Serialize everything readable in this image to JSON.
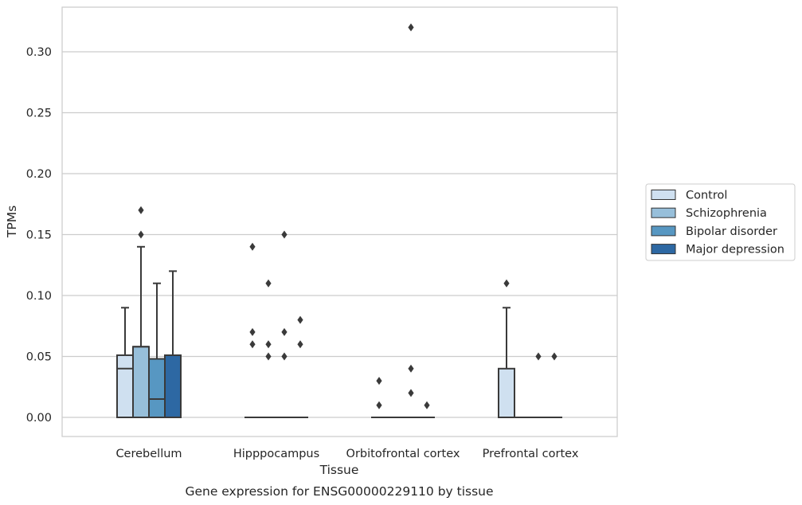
{
  "chart_data": {
    "type": "box",
    "caption": "Gene expression for ENSG00000229110 by tissue",
    "xlabel": "Tissue",
    "ylabel": "TPMs",
    "ylim": [
      -0.016,
      0.337
    ],
    "yticks": [
      0.0,
      0.05,
      0.1,
      0.15,
      0.2,
      0.25,
      0.3
    ],
    "ytick_labels": [
      "0.00",
      "0.05",
      "0.10",
      "0.15",
      "0.20",
      "0.25",
      "0.30"
    ],
    "grid": "horizontal",
    "legend_position": "right",
    "categories": [
      "Cerebellum",
      "Hipppocampus",
      "Orbitofrontal cortex",
      "Prefrontal cortex"
    ],
    "series": [
      {
        "name": "Control",
        "color": "#cfe0f0",
        "boxes": [
          {
            "q1": 0,
            "median": 0.04,
            "q3": 0.051,
            "whisker_low": 0,
            "whisker_high": 0.09,
            "outliers": []
          },
          {
            "q1": 0,
            "median": 0,
            "q3": 0,
            "whisker_low": 0,
            "whisker_high": 0,
            "outliers": [
              0.14,
              0.07,
              0.06
            ]
          },
          {
            "q1": 0,
            "median": 0,
            "q3": 0,
            "whisker_low": 0,
            "whisker_high": 0,
            "outliers": [
              0.03,
              0.01
            ]
          },
          {
            "q1": 0,
            "median": 0,
            "q3": 0.04,
            "whisker_low": 0,
            "whisker_high": 0.09,
            "outliers": [
              0.11
            ]
          }
        ]
      },
      {
        "name": "Schizophrenia",
        "color": "#97bfda",
        "boxes": [
          {
            "q1": 0,
            "median": 0.058,
            "q3": 0.058,
            "whisker_low": 0,
            "whisker_high": 0.14,
            "outliers": [
              0.17,
              0.15
            ]
          },
          {
            "q1": 0,
            "median": 0,
            "q3": 0,
            "whisker_low": 0,
            "whisker_high": 0,
            "outliers": [
              0.11,
              0.06,
              0.05
            ]
          },
          {
            "q1": 0,
            "median": 0,
            "q3": 0,
            "whisker_low": 0,
            "whisker_high": 0,
            "outliers": []
          },
          {
            "q1": 0,
            "median": 0,
            "q3": 0,
            "whisker_low": 0,
            "whisker_high": 0,
            "outliers": []
          }
        ]
      },
      {
        "name": "Bipolar disorder",
        "color": "#5797c2",
        "boxes": [
          {
            "q1": 0,
            "median": 0.015,
            "q3": 0.048,
            "whisker_low": 0,
            "whisker_high": 0.11,
            "outliers": []
          },
          {
            "q1": 0,
            "median": 0,
            "q3": 0,
            "whisker_low": 0,
            "whisker_high": 0,
            "outliers": [
              0.15,
              0.07,
              0.05
            ]
          },
          {
            "q1": 0,
            "median": 0,
            "q3": 0,
            "whisker_low": 0,
            "whisker_high": 0,
            "outliers": [
              0.32,
              0.04,
              0.02
            ]
          },
          {
            "q1": 0,
            "median": 0,
            "q3": 0,
            "whisker_low": 0,
            "whisker_high": 0,
            "outliers": [
              0.05
            ]
          }
        ]
      },
      {
        "name": "Major depression",
        "color": "#2d68a3",
        "boxes": [
          {
            "q1": 0,
            "median": 0.051,
            "q3": 0.051,
            "whisker_low": 0,
            "whisker_high": 0.12,
            "outliers": []
          },
          {
            "q1": 0,
            "median": 0,
            "q3": 0,
            "whisker_low": 0,
            "whisker_high": 0,
            "outliers": [
              0.08,
              0.06
            ]
          },
          {
            "q1": 0,
            "median": 0,
            "q3": 0,
            "whisker_low": 0,
            "whisker_high": 0,
            "outliers": [
              0.01
            ]
          },
          {
            "q1": 0,
            "median": 0,
            "q3": 0,
            "whisker_low": 0,
            "whisker_high": 0,
            "outliers": [
              0.05
            ]
          }
        ]
      }
    ]
  }
}
